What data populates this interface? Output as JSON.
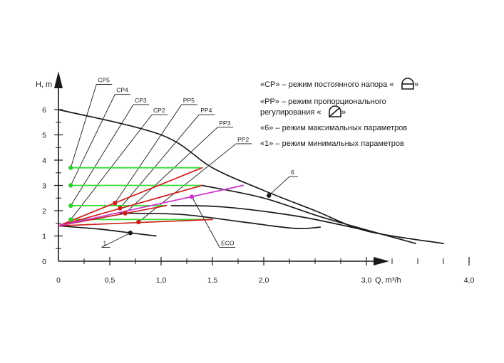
{
  "chart_data": {
    "type": "line",
    "title": "",
    "xlabel": "Q, m³/h",
    "ylabel": "H, m",
    "xlim": [
      0,
      4.3
    ],
    "ylim": [
      0,
      7.3
    ],
    "x_ticks": [
      {
        "value": 0,
        "label": "0"
      },
      {
        "value": 0.5,
        "label": "0,5"
      },
      {
        "value": 1.0,
        "label": "1,0"
      },
      {
        "value": 1.5,
        "label": "1,5"
      },
      {
        "value": 2.0,
        "label": "2,0"
      },
      {
        "value": 3.0,
        "label": "3,0"
      },
      {
        "value": 4.0,
        "label": "4,0"
      }
    ],
    "x_minor_ticks": [
      0.25,
      0.75,
      1.25,
      1.75,
      2.25,
      2.5,
      2.75,
      3.25,
      3.5,
      3.75
    ],
    "y_ticks": [
      {
        "value": 0,
        "label": "0"
      },
      {
        "value": 1,
        "label": "1"
      },
      {
        "value": 2,
        "label": "2"
      },
      {
        "value": 3,
        "label": "3"
      },
      {
        "value": 4,
        "label": "4"
      },
      {
        "value": 5,
        "label": "5"
      },
      {
        "value": 6,
        "label": "6"
      }
    ],
    "grid": false,
    "colors": {
      "axis": "#1a1a1a",
      "max_curve": "#1a1a1a",
      "min_curve": "#1a1a1a",
      "cp": "#33dd33",
      "cp_point": "#33cc33",
      "pp": "#cc1f1f",
      "pp_point": "#cc1f1f",
      "eco": "#cc33cc",
      "eco_point": "#cc33cc",
      "leader": "#1a1a1a"
    },
    "series": [
      {
        "key": "max",
        "kind": "max",
        "points": [
          [
            0,
            6.0
          ],
          [
            1.0,
            5.0
          ],
          [
            1.5,
            3.7
          ],
          [
            2.0,
            2.8
          ],
          [
            2.5,
            2.0
          ],
          [
            3.0,
            1.2
          ],
          [
            3.75,
            0.7
          ]
        ]
      },
      {
        "key": "c1",
        "kind": "perf",
        "points": [
          [
            1.4,
            3.0
          ],
          [
            2.0,
            2.5
          ],
          [
            2.6,
            1.7
          ],
          [
            3.48,
            0.7
          ]
        ]
      },
      {
        "key": "c2",
        "kind": "perf",
        "points": [
          [
            1.1,
            2.2
          ],
          [
            1.6,
            2.15
          ],
          [
            2.3,
            1.8
          ],
          [
            2.85,
            1.35
          ],
          [
            3.05,
            1.15
          ]
        ]
      },
      {
        "key": "c3",
        "kind": "perf",
        "points": [
          [
            0.6,
            1.9
          ],
          [
            1.2,
            1.85
          ],
          [
            1.8,
            1.55
          ],
          [
            2.3,
            1.3
          ],
          [
            2.55,
            1.35
          ]
        ]
      },
      {
        "key": "min",
        "kind": "min",
        "points": [
          [
            0,
            1.4
          ],
          [
            0.4,
            1.27
          ],
          [
            0.7,
            1.12
          ],
          [
            0.95,
            1.0
          ]
        ]
      },
      {
        "key": "cp2",
        "kind": "cp",
        "points": [
          [
            0.12,
            1.65
          ],
          [
            1.5,
            1.65
          ]
        ]
      },
      {
        "key": "cp3",
        "kind": "cp",
        "points": [
          [
            0.12,
            2.2
          ],
          [
            1.05,
            2.2
          ]
        ]
      },
      {
        "key": "cp4",
        "kind": "cp",
        "points": [
          [
            0.12,
            3.0
          ],
          [
            1.4,
            3.0
          ]
        ]
      },
      {
        "key": "cp5",
        "kind": "cp",
        "points": [
          [
            0.12,
            3.7
          ],
          [
            1.38,
            3.7
          ]
        ]
      },
      {
        "key": "pp5",
        "kind": "pp",
        "points": [
          [
            0,
            1.4
          ],
          [
            1.4,
            3.7
          ]
        ]
      },
      {
        "key": "pp4",
        "kind": "pp",
        "points": [
          [
            0,
            1.4
          ],
          [
            1.4,
            3.0
          ]
        ]
      },
      {
        "key": "pp3",
        "kind": "pp",
        "points": [
          [
            0,
            1.4
          ],
          [
            1.05,
            2.2
          ]
        ]
      },
      {
        "key": "pp2",
        "kind": "pp",
        "points": [
          [
            0,
            1.4
          ],
          [
            1.5,
            1.65
          ]
        ]
      },
      {
        "key": "eco",
        "kind": "eco",
        "points": [
          [
            0,
            1.4
          ],
          [
            1.8,
            3.0
          ]
        ]
      }
    ],
    "points": [
      {
        "key": "p6",
        "x": 2.05,
        "y": 2.6,
        "kind": "max"
      },
      {
        "key": "p1",
        "x": 0.7,
        "y": 1.12,
        "kind": "min"
      },
      {
        "key": "pcp5",
        "x": 0.12,
        "y": 3.7,
        "kind": "cp"
      },
      {
        "key": "pcp4",
        "x": 0.12,
        "y": 3.0,
        "kind": "cp"
      },
      {
        "key": "pcp3",
        "x": 0.12,
        "y": 2.2,
        "kind": "cp"
      },
      {
        "key": "pcp2",
        "x": 0.12,
        "y": 1.65,
        "kind": "cp"
      },
      {
        "key": "ppp5",
        "x": 0.55,
        "y": 2.3,
        "kind": "pp"
      },
      {
        "key": "ppp4",
        "x": 0.6,
        "y": 2.1,
        "kind": "pp"
      },
      {
        "key": "ppp3",
        "x": 0.65,
        "y": 1.9,
        "kind": "pp"
      },
      {
        "key": "ppp2",
        "x": 0.78,
        "y": 1.55,
        "kind": "pp"
      },
      {
        "key": "peco",
        "x": 1.3,
        "y": 2.55,
        "kind": "eco"
      }
    ],
    "annotations": [
      {
        "text": "CP5",
        "lx": 0.37,
        "ly": 7.0,
        "tx": 0.12,
        "ty": 3.7
      },
      {
        "text": "CP4",
        "lx": 0.55,
        "ly": 6.6,
        "tx": 0.12,
        "ty": 3.0
      },
      {
        "text": "CP3",
        "lx": 0.73,
        "ly": 6.2,
        "tx": 0.12,
        "ty": 2.2
      },
      {
        "text": "CP2",
        "lx": 0.91,
        "ly": 5.8,
        "tx": 0.12,
        "ty": 1.65
      },
      {
        "text": "PP5",
        "lx": 1.2,
        "ly": 6.2,
        "tx": 0.55,
        "ty": 2.3
      },
      {
        "text": "PP4",
        "lx": 1.37,
        "ly": 5.8,
        "tx": 0.6,
        "ty": 2.1
      },
      {
        "text": "PP3",
        "lx": 1.55,
        "ly": 5.3,
        "tx": 0.65,
        "ty": 1.9
      },
      {
        "text": "PP2",
        "lx": 1.73,
        "ly": 4.65,
        "tx": 0.78,
        "ty": 1.55
      },
      {
        "text": "6",
        "lx": 2.25,
        "ly": 3.35,
        "tx": 2.05,
        "ty": 2.6
      },
      {
        "text": "1",
        "lx": 0.42,
        "ly": 0.55,
        "tx": 0.7,
        "ty": 1.12
      },
      {
        "text": "ECO",
        "lx": 1.57,
        "ly": 0.55,
        "tx": 1.3,
        "ty": 2.55
      }
    ]
  },
  "legend": [
    {
      "text": "«CP» – режим постоянного напора «",
      "suffix": "»",
      "icon": "constant-pressure-icon"
    },
    {
      "text": "«PP» – режим пропорционального",
      "line2": "регулирования «",
      "suffix": "»",
      "icon": "proportional-pressure-icon"
    },
    {
      "text": "«6» – режим максимальных параметров"
    },
    {
      "text": "«1» – режим минимальных параметров"
    }
  ]
}
